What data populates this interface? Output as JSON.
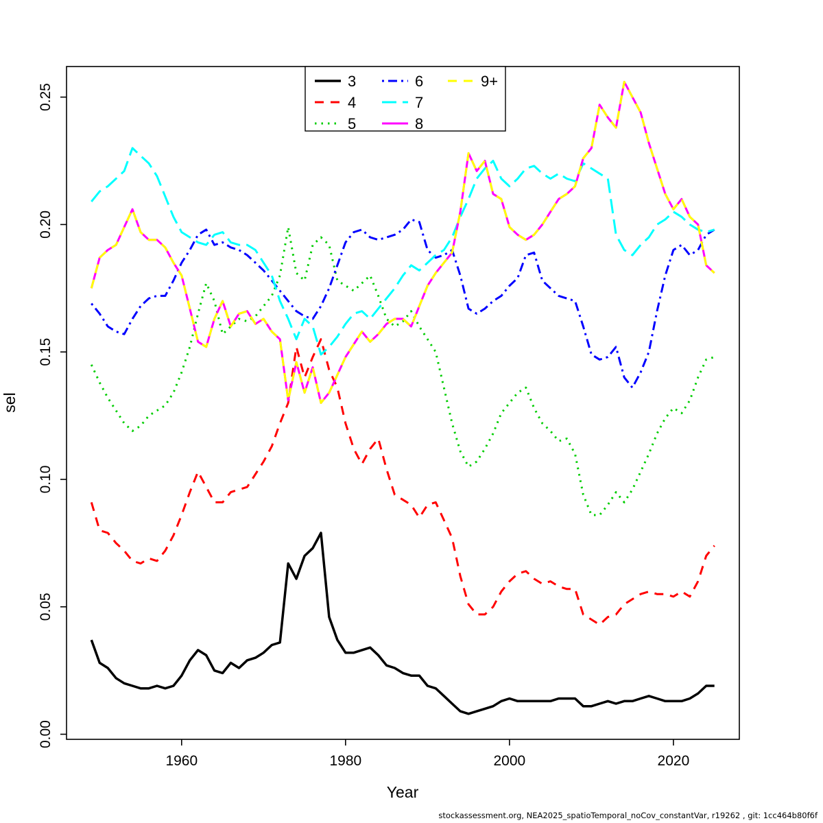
{
  "page": {
    "footer": "stockassessment.org, NEA2025_spatioTemporal_noCov_constantVar, r19262 , git: 1cc464b80f6f"
  },
  "chart_data": {
    "type": "line",
    "title": "",
    "xlabel": "Year",
    "ylabel": "sel",
    "grid": false,
    "legend_position": "top-center",
    "x_ticks": [
      1960,
      1980,
      2000,
      2020
    ],
    "y_ticks": [
      0.0,
      0.05,
      0.1,
      0.15,
      0.2,
      0.25
    ],
    "xlim": [
      1945.96,
      2028.04
    ],
    "ylim": [
      -0.002,
      0.262
    ],
    "years": [
      1949,
      1950,
      1951,
      1952,
      1953,
      1954,
      1955,
      1956,
      1957,
      1958,
      1959,
      1960,
      1961,
      1962,
      1963,
      1964,
      1965,
      1966,
      1967,
      1968,
      1969,
      1970,
      1971,
      1972,
      1973,
      1974,
      1975,
      1976,
      1977,
      1978,
      1979,
      1980,
      1981,
      1982,
      1983,
      1984,
      1985,
      1986,
      1987,
      1988,
      1989,
      1990,
      1991,
      1992,
      1993,
      1994,
      1995,
      1996,
      1997,
      1998,
      1999,
      2000,
      2001,
      2002,
      2003,
      2004,
      2005,
      2006,
      2007,
      2008,
      2009,
      2010,
      2011,
      2012,
      2013,
      2014,
      2015,
      2016,
      2017,
      2018,
      2019,
      2020,
      2021,
      2022,
      2023,
      2024,
      2025
    ],
    "legend_columns": [
      [
        0,
        1,
        2
      ],
      [
        3,
        4,
        5
      ],
      [
        6
      ]
    ],
    "series": [
      {
        "name": "3",
        "color": "#000000",
        "linetype": "solid",
        "width": 3.5,
        "values": [
          0.037,
          0.028,
          0.026,
          0.022,
          0.02,
          0.019,
          0.018,
          0.018,
          0.019,
          0.018,
          0.019,
          0.023,
          0.029,
          0.033,
          0.031,
          0.025,
          0.024,
          0.028,
          0.026,
          0.029,
          0.03,
          0.032,
          0.035,
          0.036,
          0.067,
          0.061,
          0.07,
          0.073,
          0.079,
          0.046,
          0.037,
          0.032,
          0.032,
          0.033,
          0.034,
          0.031,
          0.027,
          0.026,
          0.024,
          0.023,
          0.023,
          0.019,
          0.018,
          0.015,
          0.012,
          0.009,
          0.008,
          0.009,
          0.01,
          0.011,
          0.013,
          0.014,
          0.013,
          0.013,
          0.013,
          0.013,
          0.013,
          0.014,
          0.014,
          0.014,
          0.011,
          0.011,
          0.012,
          0.013,
          0.012,
          0.013,
          0.013,
          0.014,
          0.015,
          0.014,
          0.013,
          0.013,
          0.013,
          0.014,
          0.016,
          0.019,
          0.019
        ]
      },
      {
        "name": "4",
        "color": "#ff0000",
        "linetype": "dashed",
        "width": 3,
        "values": [
          0.091,
          0.08,
          0.079,
          0.075,
          0.072,
          0.068,
          0.067,
          0.069,
          0.068,
          0.072,
          0.078,
          0.086,
          0.095,
          0.103,
          0.097,
          0.091,
          0.091,
          0.095,
          0.096,
          0.097,
          0.102,
          0.107,
          0.113,
          0.122,
          0.13,
          0.152,
          0.14,
          0.148,
          0.155,
          0.143,
          0.136,
          0.122,
          0.112,
          0.106,
          0.112,
          0.116,
          0.104,
          0.094,
          0.092,
          0.09,
          0.085,
          0.09,
          0.091,
          0.084,
          0.077,
          0.062,
          0.051,
          0.047,
          0.047,
          0.05,
          0.056,
          0.06,
          0.063,
          0.064,
          0.061,
          0.059,
          0.06,
          0.058,
          0.057,
          0.057,
          0.047,
          0.045,
          0.043,
          0.046,
          0.047,
          0.051,
          0.053,
          0.055,
          0.056,
          0.055,
          0.055,
          0.054,
          0.056,
          0.054,
          0.06,
          0.07,
          0.074
        ]
      },
      {
        "name": "5",
        "color": "#00cd00",
        "linetype": "dotted",
        "width": 3,
        "values": [
          0.145,
          0.138,
          0.132,
          0.127,
          0.122,
          0.119,
          0.121,
          0.125,
          0.127,
          0.129,
          0.134,
          0.142,
          0.152,
          0.165,
          0.177,
          0.17,
          0.157,
          0.16,
          0.163,
          0.162,
          0.164,
          0.168,
          0.172,
          0.18,
          0.199,
          0.181,
          0.178,
          0.192,
          0.195,
          0.192,
          0.178,
          0.176,
          0.174,
          0.177,
          0.18,
          0.172,
          0.163,
          0.16,
          0.162,
          0.166,
          0.16,
          0.155,
          0.15,
          0.136,
          0.122,
          0.111,
          0.105,
          0.107,
          0.112,
          0.118,
          0.126,
          0.13,
          0.134,
          0.136,
          0.128,
          0.122,
          0.119,
          0.115,
          0.116,
          0.11,
          0.094,
          0.086,
          0.086,
          0.09,
          0.095,
          0.091,
          0.096,
          0.103,
          0.11,
          0.118,
          0.124,
          0.128,
          0.126,
          0.131,
          0.14,
          0.147,
          0.148
        ]
      },
      {
        "name": "6",
        "color": "#0000ff",
        "linetype": "dotdash",
        "width": 3,
        "values": [
          0.169,
          0.165,
          0.16,
          0.158,
          0.157,
          0.163,
          0.168,
          0.171,
          0.172,
          0.172,
          0.178,
          0.185,
          0.19,
          0.196,
          0.198,
          0.192,
          0.193,
          0.191,
          0.19,
          0.188,
          0.185,
          0.182,
          0.178,
          0.174,
          0.17,
          0.166,
          0.164,
          0.163,
          0.168,
          0.175,
          0.184,
          0.193,
          0.197,
          0.198,
          0.195,
          0.194,
          0.195,
          0.196,
          0.198,
          0.202,
          0.201,
          0.19,
          0.187,
          0.188,
          0.19,
          0.18,
          0.167,
          0.165,
          0.167,
          0.17,
          0.172,
          0.176,
          0.179,
          0.188,
          0.189,
          0.178,
          0.175,
          0.172,
          0.171,
          0.17,
          0.16,
          0.149,
          0.147,
          0.148,
          0.152,
          0.14,
          0.136,
          0.142,
          0.15,
          0.166,
          0.18,
          0.19,
          0.192,
          0.188,
          0.19,
          0.196,
          0.198
        ]
      },
      {
        "name": "7",
        "color": "#00ffff",
        "linetype": "longdash",
        "width": 3,
        "values": [
          0.209,
          0.213,
          0.215,
          0.218,
          0.221,
          0.23,
          0.227,
          0.224,
          0.219,
          0.211,
          0.203,
          0.197,
          0.195,
          0.193,
          0.192,
          0.196,
          0.197,
          0.193,
          0.192,
          0.192,
          0.19,
          0.185,
          0.18,
          0.17,
          0.163,
          0.155,
          0.163,
          0.16,
          0.149,
          0.152,
          0.156,
          0.161,
          0.165,
          0.166,
          0.163,
          0.167,
          0.171,
          0.175,
          0.18,
          0.184,
          0.182,
          0.185,
          0.188,
          0.19,
          0.195,
          0.203,
          0.21,
          0.218,
          0.222,
          0.225,
          0.218,
          0.215,
          0.218,
          0.222,
          0.223,
          0.22,
          0.218,
          0.22,
          0.218,
          0.217,
          0.224,
          0.222,
          0.22,
          0.218,
          0.196,
          0.19,
          0.188,
          0.192,
          0.195,
          0.2,
          0.202,
          0.205,
          0.203,
          0.2,
          0.198,
          0.197,
          0.198
        ]
      },
      {
        "name": "8",
        "color": "#ff00ff",
        "linetype": "solid",
        "width": 3,
        "values": [
          0.175,
          0.187,
          0.19,
          0.192,
          0.199,
          0.206,
          0.197,
          0.194,
          0.194,
          0.191,
          0.185,
          0.18,
          0.167,
          0.154,
          0.152,
          0.163,
          0.17,
          0.16,
          0.165,
          0.166,
          0.161,
          0.163,
          0.158,
          0.155,
          0.131,
          0.146,
          0.134,
          0.144,
          0.13,
          0.134,
          0.141,
          0.148,
          0.153,
          0.158,
          0.154,
          0.157,
          0.161,
          0.163,
          0.163,
          0.16,
          0.168,
          0.176,
          0.181,
          0.185,
          0.189,
          0.205,
          0.228,
          0.221,
          0.225,
          0.212,
          0.21,
          0.199,
          0.196,
          0.194,
          0.196,
          0.2,
          0.205,
          0.21,
          0.212,
          0.215,
          0.226,
          0.23,
          0.247,
          0.242,
          0.238,
          0.256,
          0.25,
          0.244,
          0.232,
          0.222,
          0.212,
          0.206,
          0.21,
          0.203,
          0.2,
          0.184,
          0.181
        ]
      },
      {
        "name": "9+",
        "color": "#ffff00",
        "linetype": "dashed",
        "width": 3,
        "values": [
          0.175,
          0.187,
          0.19,
          0.192,
          0.199,
          0.206,
          0.197,
          0.194,
          0.194,
          0.191,
          0.185,
          0.18,
          0.167,
          0.154,
          0.152,
          0.163,
          0.17,
          0.16,
          0.165,
          0.166,
          0.161,
          0.163,
          0.158,
          0.155,
          0.131,
          0.146,
          0.134,
          0.144,
          0.13,
          0.134,
          0.141,
          0.148,
          0.153,
          0.158,
          0.154,
          0.157,
          0.161,
          0.163,
          0.163,
          0.16,
          0.168,
          0.176,
          0.181,
          0.185,
          0.189,
          0.205,
          0.228,
          0.221,
          0.225,
          0.212,
          0.21,
          0.199,
          0.196,
          0.194,
          0.196,
          0.2,
          0.205,
          0.21,
          0.212,
          0.215,
          0.226,
          0.23,
          0.247,
          0.242,
          0.238,
          0.256,
          0.25,
          0.244,
          0.232,
          0.222,
          0.212,
          0.206,
          0.21,
          0.203,
          0.2,
          0.184,
          0.181
        ]
      }
    ]
  }
}
